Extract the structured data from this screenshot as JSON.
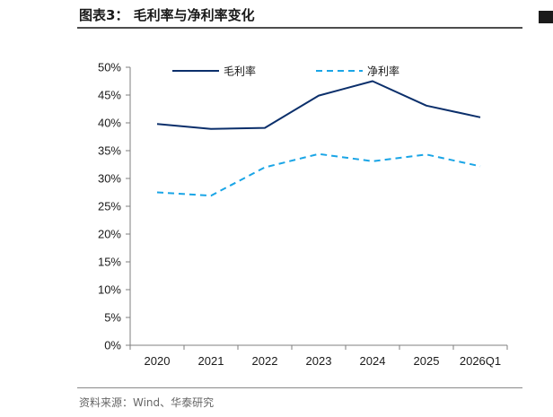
{
  "header": {
    "title": "图表3：  毛利率与净利率变化"
  },
  "footer": {
    "source": "资料来源：Wind、华泰研究"
  },
  "colors": {
    "gross": "#0b2f6b",
    "net": "#1aa5e6",
    "axis": "#7f7f7f",
    "text": "#1a1a1a"
  },
  "chart_data": {
    "type": "line",
    "title": "",
    "xlabel": "",
    "ylabel": "",
    "categories": [
      "2020",
      "2021",
      "2022",
      "2023",
      "2024",
      "2025",
      "2026Q1"
    ],
    "ylim": [
      0,
      50
    ],
    "yticks": [
      0,
      5,
      10,
      15,
      20,
      25,
      30,
      35,
      40,
      45,
      50
    ],
    "ytick_labels": [
      "0%",
      "5%",
      "10%",
      "15%",
      "20%",
      "25%",
      "30%",
      "35%",
      "40%",
      "45%",
      "50%"
    ],
    "grid": false,
    "legend_position": "top",
    "series": [
      {
        "name": "毛利率",
        "values": [
          39.8,
          38.9,
          39.1,
          44.9,
          47.5,
          43.1,
          41.0
        ],
        "style": "solid",
        "color": "#0b2f6b"
      },
      {
        "name": "净利率",
        "values": [
          27.5,
          26.9,
          32.0,
          34.4,
          33.1,
          34.3,
          32.2
        ],
        "style": "dashed",
        "color": "#1aa5e6"
      }
    ]
  }
}
